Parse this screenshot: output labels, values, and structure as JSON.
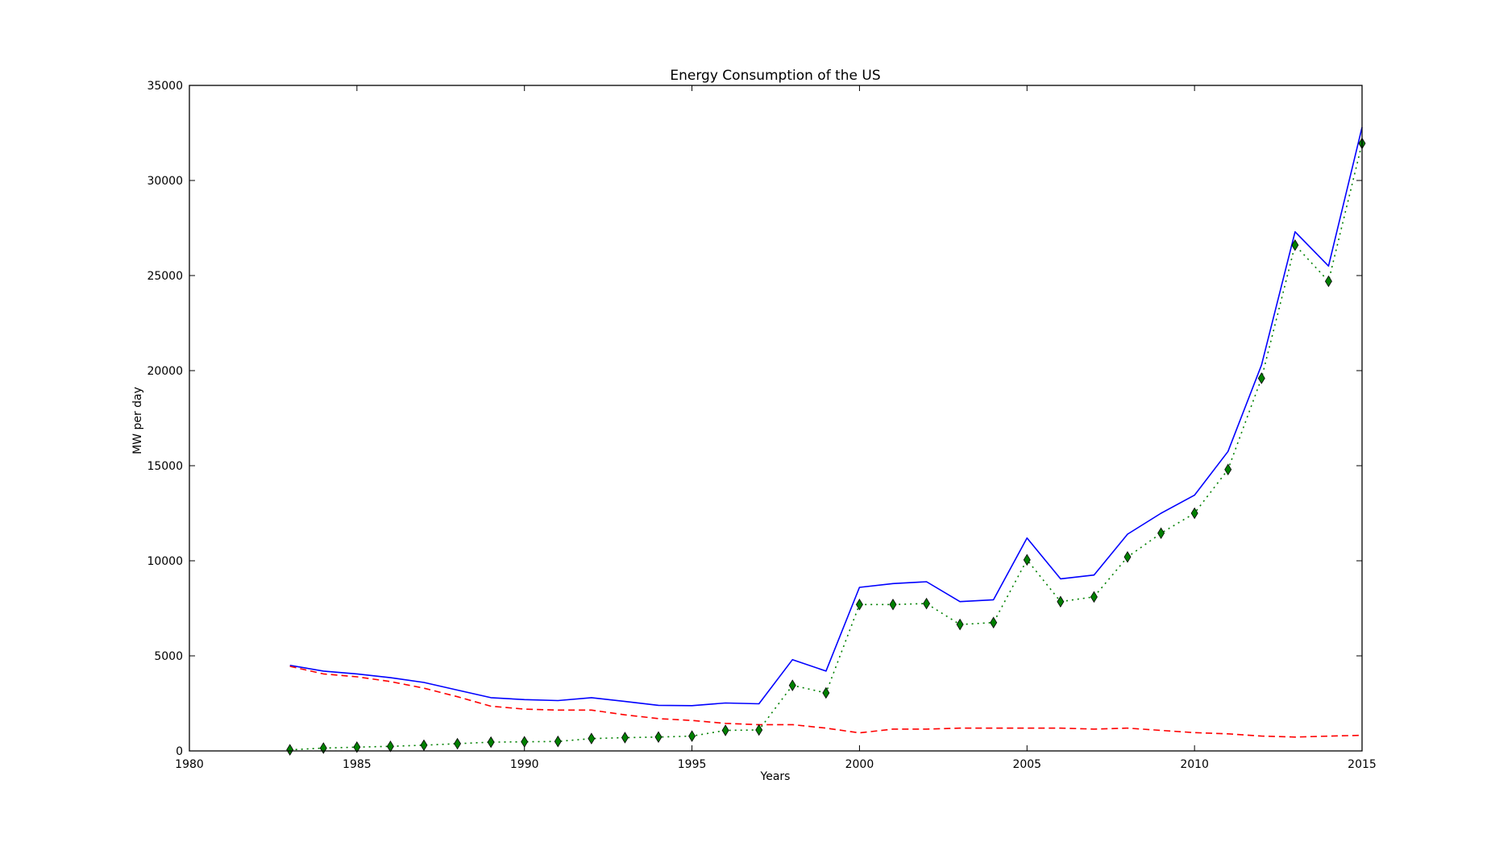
{
  "chart_data": {
    "type": "line",
    "title": "Energy Consumption of the US",
    "xlabel": "Years",
    "ylabel": "MW per day",
    "xlim": [
      1980,
      2015
    ],
    "ylim": [
      0,
      35000
    ],
    "xticks": [
      "1980",
      "1985",
      "1990",
      "1995",
      "2000",
      "2005",
      "2010",
      "2015"
    ],
    "yticks": [
      "0",
      "5000",
      "10000",
      "15000",
      "20000",
      "25000",
      "30000",
      "35000"
    ],
    "grid": false,
    "legend": "none",
    "x": [
      1983,
      1984,
      1985,
      1986,
      1987,
      1988,
      1989,
      1990,
      1991,
      1992,
      1993,
      1994,
      1995,
      1996,
      1997,
      1998,
      1999,
      2000,
      2001,
      2002,
      2003,
      2004,
      2005,
      2006,
      2007,
      2008,
      2009,
      2010,
      2011,
      2012,
      2013,
      2014,
      2015
    ],
    "series": [
      {
        "color": "#0000ff",
        "style": "solid",
        "marker": "none",
        "values": [
          4500,
          4200,
          4050,
          3850,
          3600,
          3200,
          2800,
          2700,
          2650,
          2800,
          2600,
          2400,
          2380,
          2520,
          2480,
          4800,
          4200,
          8600,
          8800,
          8900,
          7850,
          7950,
          11200,
          9050,
          9250,
          11400,
          12500,
          13450,
          15750,
          20300,
          27300,
          25500,
          32800
        ]
      },
      {
        "color": "#ff0000",
        "style": "dashed",
        "marker": "none",
        "values": [
          4450,
          4050,
          3900,
          3650,
          3300,
          2850,
          2350,
          2200,
          2150,
          2150,
          1900,
          1700,
          1600,
          1450,
          1380,
          1380,
          1200,
          950,
          1150,
          1150,
          1200,
          1200,
          1200,
          1200,
          1150,
          1200,
          1080,
          960,
          900,
          780,
          730,
          780,
          820
        ]
      },
      {
        "color": "#008000",
        "style": "dotted",
        "marker": "diamond",
        "values": [
          60,
          150,
          200,
          240,
          300,
          380,
          460,
          480,
          500,
          650,
          700,
          730,
          780,
          1080,
          1100,
          3450,
          3050,
          7700,
          7700,
          7750,
          6650,
          6750,
          10050,
          7850,
          8100,
          10200,
          11450,
          12500,
          14800,
          19600,
          26600,
          24700,
          31950
        ]
      }
    ]
  }
}
